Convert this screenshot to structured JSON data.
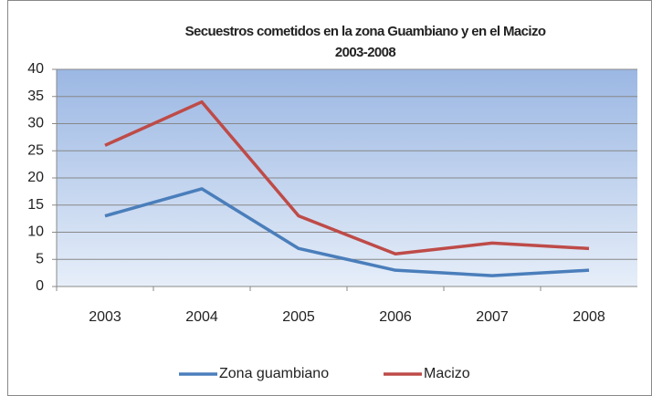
{
  "chart_data": {
    "type": "line",
    "title": "Secuestros cometidos en la zona Guambiano y en el Macizo",
    "subtitle": "2003-2008",
    "categories": [
      "2003",
      "2004",
      "2005",
      "2006",
      "2007",
      "2008"
    ],
    "series": [
      {
        "name": "Zona guambiano",
        "color": "#4a7ebb",
        "values": [
          13,
          18,
          7,
          3,
          2,
          3
        ]
      },
      {
        "name": "Macizo",
        "color": "#be4b48",
        "values": [
          26,
          34,
          13,
          6,
          8,
          7
        ]
      }
    ],
    "ylim": [
      0,
      40
    ],
    "yticks": [
      0,
      5,
      10,
      15,
      20,
      25,
      30,
      35,
      40
    ],
    "grid": true,
    "legend": "bottom"
  }
}
